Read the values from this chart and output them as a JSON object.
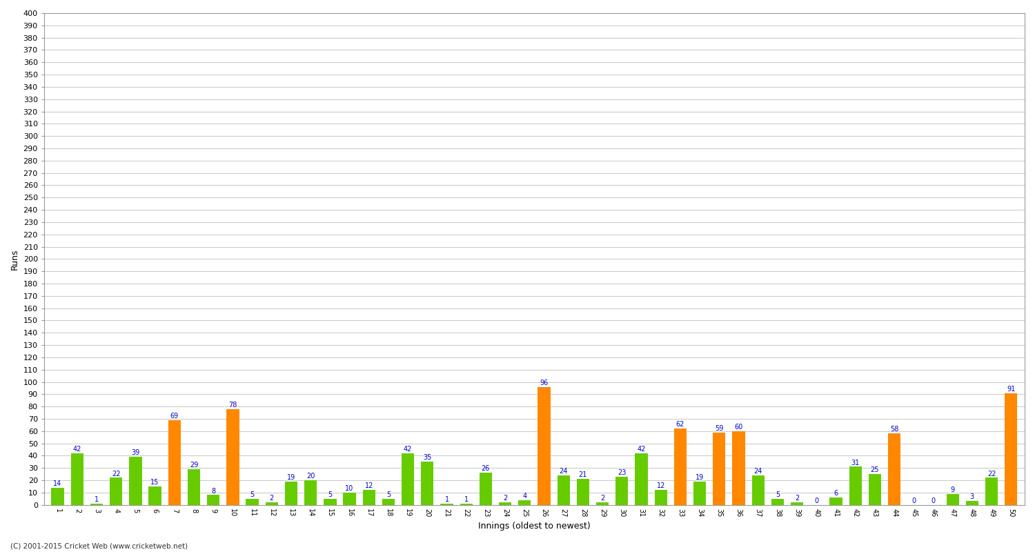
{
  "innings_labels": [
    "1",
    "2",
    "3",
    "4",
    "5",
    "6",
    "7",
    "8",
    "9",
    "10",
    "11",
    "12",
    "13",
    "14",
    "15",
    "16",
    "17",
    "18",
    "19",
    "20",
    "21",
    "22",
    "23",
    "24",
    "25",
    "26",
    "27",
    "28",
    "29",
    "30",
    "31",
    "32",
    "33",
    "34",
    "35",
    "36",
    "37",
    "38",
    "39",
    "40",
    "41",
    "42",
    "43",
    "44",
    "45",
    "46",
    "47",
    "48",
    "49",
    "50"
  ],
  "values": [
    14,
    42,
    1,
    22,
    39,
    15,
    69,
    29,
    8,
    78,
    5,
    2,
    19,
    20,
    5,
    10,
    12,
    5,
    42,
    35,
    1,
    1,
    26,
    2,
    4,
    96,
    24,
    21,
    2,
    23,
    42,
    12,
    62,
    19,
    59,
    60,
    24,
    5,
    2,
    0,
    6,
    31,
    25,
    58,
    0,
    0,
    9,
    3,
    22,
    91
  ],
  "colors": [
    "#66cc00",
    "#66cc00",
    "#66cc00",
    "#66cc00",
    "#66cc00",
    "#66cc00",
    "#ff8800",
    "#66cc00",
    "#66cc00",
    "#ff8800",
    "#66cc00",
    "#66cc00",
    "#66cc00",
    "#66cc00",
    "#66cc00",
    "#66cc00",
    "#66cc00",
    "#66cc00",
    "#66cc00",
    "#66cc00",
    "#66cc00",
    "#66cc00",
    "#66cc00",
    "#66cc00",
    "#66cc00",
    "#ff8800",
    "#66cc00",
    "#66cc00",
    "#66cc00",
    "#66cc00",
    "#66cc00",
    "#66cc00",
    "#ff8800",
    "#66cc00",
    "#ff8800",
    "#ff8800",
    "#66cc00",
    "#66cc00",
    "#66cc00",
    "#66cc00",
    "#66cc00",
    "#66cc00",
    "#66cc00",
    "#ff8800",
    "#66cc00",
    "#66cc00",
    "#66cc00",
    "#66cc00",
    "#66cc00",
    "#ff8800"
  ],
  "title": "",
  "ylabel": "Runs",
  "xlabel": "Innings (oldest to newest)",
  "ylim": [
    0,
    400
  ],
  "yticks": [
    0,
    10,
    20,
    30,
    40,
    50,
    60,
    70,
    80,
    90,
    100,
    110,
    120,
    130,
    140,
    150,
    160,
    170,
    180,
    190,
    200,
    210,
    220,
    230,
    240,
    250,
    260,
    270,
    280,
    290,
    300,
    310,
    320,
    330,
    340,
    350,
    360,
    370,
    380,
    390,
    400
  ],
  "plot_bg_color": "#ffffff",
  "fig_bg_color": "#ffffff",
  "grid_color": "#cccccc",
  "bar_color_green": "#66cc00",
  "bar_color_orange": "#ff8800",
  "label_color": "#0000cc",
  "footer": "(C) 2001-2015 Cricket Web (www.cricketweb.net)",
  "label_fontsize": 7.0,
  "tick_fontsize": 8,
  "ylabel_fontsize": 9,
  "xlabel_fontsize": 9
}
